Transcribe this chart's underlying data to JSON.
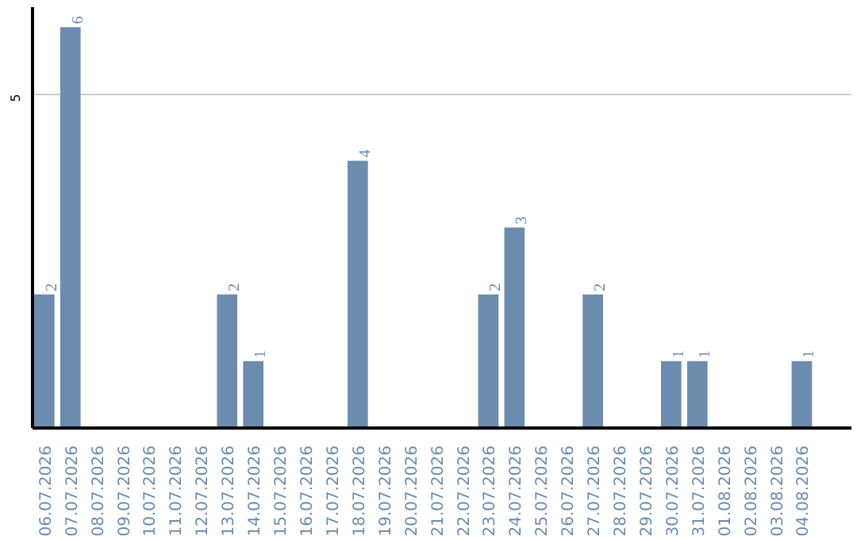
{
  "chart_data": {
    "type": "bar",
    "categories": [
      "06.07.2026",
      "07.07.2026",
      "08.07.2026",
      "09.07.2026",
      "10.07.2026",
      "11.07.2026",
      "12.07.2026",
      "13.07.2026",
      "14.07.2026",
      "15.07.2026",
      "16.07.2026",
      "17.07.2026",
      "18.07.2026",
      "19.07.2026",
      "20.07.2026",
      "21.07.2026",
      "22.07.2026",
      "23.07.2026",
      "24.07.2026",
      "25.07.2026",
      "26.07.2026",
      "27.07.2026",
      "28.07.2026",
      "29.07.2026",
      "30.07.2026",
      "31.07.2026",
      "01.08.2026",
      "02.08.2026",
      "03.08.2026",
      "04.08.2026"
    ],
    "values": [
      2,
      6,
      0,
      0,
      0,
      0,
      0,
      2,
      1,
      0,
      0,
      0,
      4,
      0,
      0,
      0,
      0,
      2,
      3,
      0,
      0,
      2,
      0,
      0,
      1,
      1,
      0,
      0,
      0,
      1
    ],
    "value_labels": [
      "2",
      "6",
      null,
      null,
      null,
      null,
      null,
      "2",
      "1",
      null,
      null,
      null,
      "4",
      null,
      null,
      null,
      null,
      "2",
      "3",
      null,
      null,
      "2",
      null,
      null,
      "1",
      "1",
      null,
      null,
      null,
      "1"
    ],
    "color": "#6b8cae",
    "ylim": [
      0,
      6.3
    ],
    "yticks": [
      5
    ],
    "grid": "y"
  }
}
